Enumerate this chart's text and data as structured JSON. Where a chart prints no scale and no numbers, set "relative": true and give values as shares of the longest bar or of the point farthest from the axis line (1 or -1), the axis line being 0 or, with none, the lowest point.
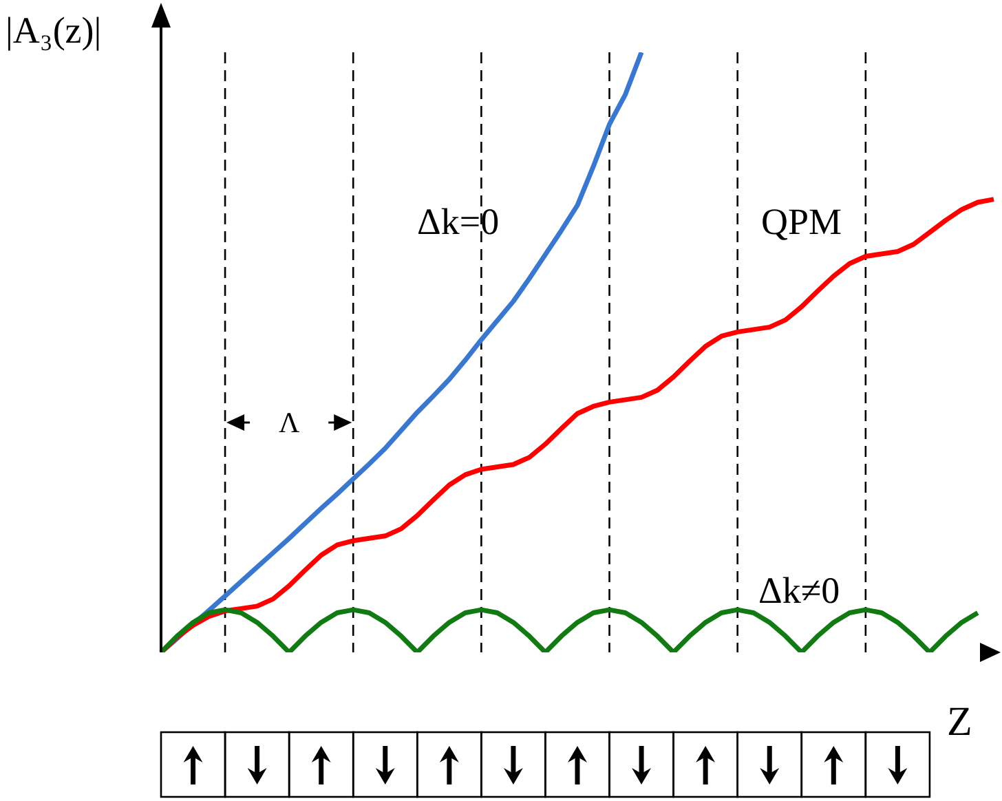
{
  "chart_data": {
    "type": "line",
    "relative": true,
    "ylabel": "|A₃(z)|",
    "xlabel": "Z",
    "marker": "none",
    "line_style": "solid",
    "annotations": [
      "Λ"
    ],
    "categories": [
      null,
      null,
      null,
      null,
      null,
      null,
      null,
      null,
      null,
      null,
      null,
      null,
      null,
      null,
      null,
      null,
      null,
      null,
      null,
      null,
      null,
      null,
      null,
      null,
      null,
      null,
      null,
      null,
      null,
      null,
      null,
      null,
      null,
      null,
      null,
      null,
      null,
      null,
      null,
      null,
      null,
      null,
      null,
      null,
      null,
      null,
      null,
      null,
      null,
      null,
      null,
      null,
      null
    ],
    "grid": "x",
    "legend": false,
    "series": [
      {
        "name": "Δk=0",
        "color": "#3a78d0",
        "values": [
          0,
          0.023,
          0.047,
          0.07,
          0.094,
          0.118,
          0.142,
          0.166,
          0.19,
          0.215,
          0.24,
          0.264,
          0.289,
          0.314,
          0.34,
          0.37,
          0.4,
          0.427,
          0.455,
          0.487,
          0.521,
          0.553,
          0.585,
          0.623,
          0.663,
          0.703,
          0.745,
          0.81,
          0.88,
          0.93,
          1,
          null,
          null,
          null,
          null,
          null,
          null,
          null,
          null,
          null,
          null,
          null,
          null,
          null,
          null,
          null,
          null,
          null,
          null,
          null,
          null,
          null,
          null
        ]
      },
      {
        "name": "QPM",
        "color": "#ff0000",
        "values": [
          0,
          0.025,
          0.045,
          0.06,
          0.069,
          0.073,
          0.077,
          0.089,
          0.111,
          0.137,
          0.162,
          0.179,
          0.186,
          0.19,
          0.194,
          0.206,
          0.228,
          0.254,
          0.279,
          0.296,
          0.305,
          0.309,
          0.313,
          0.325,
          0.347,
          0.373,
          0.398,
          0.41,
          0.417,
          0.421,
          0.425,
          0.437,
          0.459,
          0.485,
          0.51,
          0.527,
          0.534,
          0.538,
          0.542,
          0.554,
          0.576,
          0.602,
          0.627,
          0.648,
          0.66,
          0.664,
          0.668,
          0.68,
          0.7,
          0.72,
          0.738,
          0.75,
          0.755
        ]
      },
      {
        "name": "Δk≠0",
        "color": "#127a12",
        "values": [
          0,
          0.027,
          0.05,
          0.066,
          0.071,
          0.066,
          0.05,
          0.027,
          0,
          0.027,
          0.05,
          0.066,
          0.071,
          0.066,
          0.05,
          0.027,
          0,
          0.027,
          0.05,
          0.066,
          0.071,
          0.066,
          0.05,
          0.027,
          0,
          0.027,
          0.05,
          0.066,
          0.071,
          0.066,
          0.05,
          0.027,
          0,
          0.027,
          0.05,
          0.066,
          0.071,
          0.066,
          0.05,
          0.027,
          0,
          0.027,
          0.05,
          0.066,
          0.071,
          0.066,
          0.05,
          0.027,
          0,
          0.027,
          0.05,
          0.066,
          null
        ]
      }
    ]
  }
}
